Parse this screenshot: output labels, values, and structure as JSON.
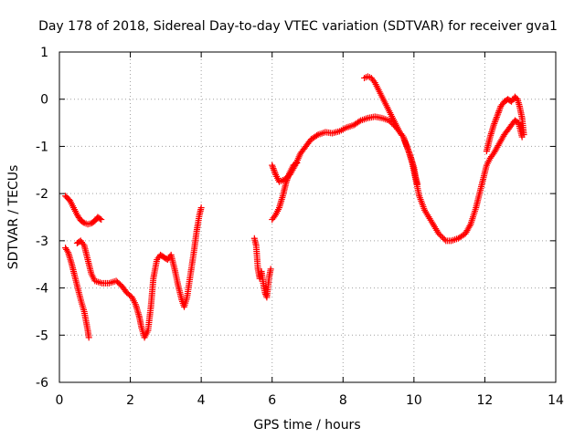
{
  "chart_data": {
    "type": "scatter",
    "title": "Day 178 of 2018, Sidereal Day-to-day VTEC variation (SDTVAR) for receiver gva1",
    "xlabel": "GPS time / hours",
    "ylabel": "SDTVAR / TECUs",
    "xlim": [
      0,
      14
    ],
    "ylim": [
      -6,
      1
    ],
    "xticks": [
      0,
      2,
      4,
      6,
      8,
      10,
      12,
      14
    ],
    "yticks": [
      1,
      0,
      -1,
      -2,
      -3,
      -4,
      -5,
      -6
    ],
    "grid": true,
    "marker": "+",
    "color": "#ff0000",
    "series": [
      {
        "name": "seg-a1",
        "points": [
          [
            0.17,
            -2.05
          ],
          [
            0.3,
            -2.15
          ],
          [
            0.4,
            -2.3
          ],
          [
            0.5,
            -2.45
          ],
          [
            0.6,
            -2.57
          ],
          [
            0.7,
            -2.62
          ],
          [
            0.8,
            -2.65
          ],
          [
            0.9,
            -2.63
          ],
          [
            1.0,
            -2.58
          ],
          [
            1.08,
            -2.5
          ],
          [
            1.18,
            -2.55
          ]
        ]
      },
      {
        "name": "seg-a2",
        "points": [
          [
            0.17,
            -3.15
          ],
          [
            0.25,
            -3.25
          ],
          [
            0.35,
            -3.5
          ],
          [
            0.45,
            -3.8
          ],
          [
            0.55,
            -4.1
          ],
          [
            0.62,
            -4.3
          ],
          [
            0.7,
            -4.5
          ],
          [
            0.75,
            -4.7
          ],
          [
            0.8,
            -4.9
          ],
          [
            0.83,
            -5.05
          ]
        ]
      },
      {
        "name": "seg-a3",
        "points": [
          [
            0.5,
            -3.05
          ],
          [
            0.6,
            -3.0
          ],
          [
            0.7,
            -3.1
          ],
          [
            0.8,
            -3.4
          ],
          [
            0.9,
            -3.7
          ],
          [
            1.0,
            -3.85
          ],
          [
            1.2,
            -3.9
          ],
          [
            1.4,
            -3.9
          ],
          [
            1.6,
            -3.85
          ],
          [
            1.75,
            -3.95
          ],
          [
            1.9,
            -4.1
          ],
          [
            2.05,
            -4.2
          ],
          [
            2.15,
            -4.35
          ],
          [
            2.25,
            -4.6
          ],
          [
            2.32,
            -4.85
          ],
          [
            2.4,
            -5.05
          ],
          [
            2.5,
            -4.9
          ],
          [
            2.58,
            -4.4
          ],
          [
            2.65,
            -3.8
          ],
          [
            2.75,
            -3.4
          ],
          [
            2.85,
            -3.3
          ],
          [
            2.95,
            -3.35
          ],
          [
            3.05,
            -3.4
          ],
          [
            3.15,
            -3.3
          ],
          [
            3.25,
            -3.6
          ],
          [
            3.35,
            -3.95
          ],
          [
            3.45,
            -4.25
          ],
          [
            3.52,
            -4.4
          ],
          [
            3.6,
            -4.2
          ],
          [
            3.7,
            -3.7
          ],
          [
            3.8,
            -3.2
          ],
          [
            3.87,
            -2.8
          ],
          [
            3.95,
            -2.45
          ],
          [
            4.0,
            -2.3
          ]
        ]
      },
      {
        "name": "seg-b1",
        "points": [
          [
            5.5,
            -2.95
          ],
          [
            5.55,
            -3.1
          ],
          [
            5.6,
            -3.6
          ],
          [
            5.65,
            -3.8
          ],
          [
            5.7,
            -3.65
          ],
          [
            5.75,
            -3.9
          ],
          [
            5.8,
            -4.1
          ],
          [
            5.85,
            -4.2
          ],
          [
            5.88,
            -4.0
          ],
          [
            5.92,
            -3.75
          ],
          [
            5.96,
            -3.6
          ]
        ]
      },
      {
        "name": "seg-b2",
        "points": [
          [
            6.0,
            -1.4
          ],
          [
            6.1,
            -1.6
          ],
          [
            6.2,
            -1.75
          ],
          [
            6.35,
            -1.7
          ],
          [
            6.5,
            -1.6
          ],
          [
            6.65,
            -1.4
          ],
          [
            6.8,
            -1.15
          ],
          [
            6.95,
            -1.0
          ],
          [
            7.1,
            -0.85
          ],
          [
            7.3,
            -0.75
          ],
          [
            7.5,
            -0.7
          ],
          [
            7.7,
            -0.72
          ],
          [
            7.9,
            -0.68
          ],
          [
            8.1,
            -0.6
          ],
          [
            8.3,
            -0.55
          ],
          [
            8.5,
            -0.45
          ],
          [
            8.7,
            -0.4
          ],
          [
            8.9,
            -0.37
          ],
          [
            9.1,
            -0.4
          ],
          [
            9.3,
            -0.45
          ],
          [
            9.5,
            -0.6
          ],
          [
            9.7,
            -0.8
          ],
          [
            9.85,
            -1.1
          ],
          [
            9.95,
            -1.35
          ],
          [
            10.05,
            -1.7
          ],
          [
            10.15,
            -2.05
          ],
          [
            10.3,
            -2.35
          ],
          [
            10.5,
            -2.6
          ],
          [
            10.7,
            -2.85
          ],
          [
            10.9,
            -3.0
          ],
          [
            11.05,
            -3.0
          ],
          [
            11.25,
            -2.95
          ],
          [
            11.45,
            -2.85
          ],
          [
            11.6,
            -2.65
          ],
          [
            11.75,
            -2.3
          ],
          [
            11.85,
            -2.0
          ],
          [
            11.95,
            -1.7
          ],
          [
            12.05,
            -1.4
          ],
          [
            12.15,
            -1.25
          ],
          [
            12.25,
            -1.15
          ],
          [
            12.4,
            -0.95
          ],
          [
            12.55,
            -0.75
          ],
          [
            12.7,
            -0.6
          ],
          [
            12.85,
            -0.45
          ],
          [
            12.95,
            -0.5
          ],
          [
            13.05,
            -0.8
          ]
        ]
      },
      {
        "name": "seg-b3",
        "points": [
          [
            6.0,
            -2.55
          ],
          [
            6.1,
            -2.45
          ],
          [
            6.2,
            -2.3
          ],
          [
            6.3,
            -2.05
          ],
          [
            6.4,
            -1.75
          ],
          [
            6.5,
            -1.55
          ],
          [
            6.6,
            -1.4
          ],
          [
            6.7,
            -1.35
          ]
        ]
      },
      {
        "name": "seg-b4",
        "points": [
          [
            8.6,
            0.45
          ],
          [
            8.7,
            0.48
          ],
          [
            8.8,
            0.45
          ],
          [
            8.9,
            0.35
          ],
          [
            9.0,
            0.2
          ],
          [
            9.1,
            0.05
          ],
          [
            9.2,
            -0.1
          ],
          [
            9.3,
            -0.25
          ],
          [
            9.4,
            -0.4
          ],
          [
            9.5,
            -0.55
          ],
          [
            9.6,
            -0.7
          ],
          [
            9.7,
            -0.8
          ],
          [
            9.8,
            -1.0
          ],
          [
            9.9,
            -1.2
          ],
          [
            10.0,
            -1.45
          ],
          [
            10.05,
            -1.65
          ],
          [
            10.1,
            -1.8
          ]
        ]
      },
      {
        "name": "seg-b5",
        "points": [
          [
            12.05,
            -1.1
          ],
          [
            12.15,
            -0.8
          ],
          [
            12.25,
            -0.55
          ],
          [
            12.35,
            -0.35
          ],
          [
            12.45,
            -0.15
          ],
          [
            12.55,
            -0.05
          ],
          [
            12.65,
            0.0
          ],
          [
            12.75,
            -0.05
          ],
          [
            12.85,
            0.05
          ],
          [
            12.92,
            0.0
          ],
          [
            12.98,
            -0.15
          ],
          [
            13.05,
            -0.4
          ],
          [
            13.1,
            -0.75
          ]
        ]
      }
    ]
  }
}
